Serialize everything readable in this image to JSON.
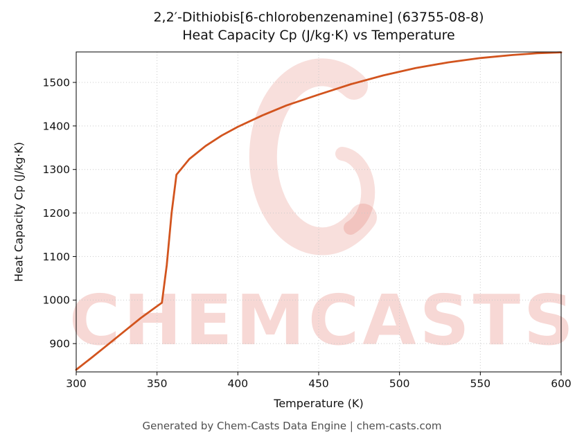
{
  "title_line1": "2,2′-Dithiobis[6-chlorobenzenamine] (63755-08-8)",
  "title_line2": "Heat Capacity Cp (J/kg·K) vs Temperature",
  "footer": "Generated by Chem-Casts Data Engine | chem-casts.com",
  "watermark": {
    "text": "CHEMCASTS",
    "color": "#d53e2e"
  },
  "chart_data": {
    "type": "line",
    "title": "2,2′-Dithiobis[6-chlorobenzenamine] (63755-08-8) Heat Capacity Cp (J/kg·K) vs Temperature",
    "xlabel": "Temperature (K)",
    "ylabel": "Heat Capacity Cp (J/kg·K)",
    "xlim": [
      300,
      600
    ],
    "ylim": [
      835,
      1570
    ],
    "xticks": [
      300,
      350,
      400,
      450,
      500,
      550,
      600
    ],
    "yticks": [
      900,
      1000,
      1100,
      1200,
      1300,
      1400,
      1500
    ],
    "grid": true,
    "grid_style": "dotted",
    "legend": "none",
    "line_color": "#d2541e",
    "series": [
      {
        "name": "Heat Capacity Cp",
        "x": [
          300,
          310,
          320,
          330,
          340,
          350,
          353,
          356,
          359,
          362,
          370,
          380,
          390,
          400,
          415,
          430,
          450,
          470,
          490,
          510,
          530,
          550,
          570,
          585,
          600
        ],
        "y": [
          840,
          869,
          899,
          929,
          959,
          986,
          994,
          1080,
          1200,
          1288,
          1324,
          1354,
          1378,
          1398,
          1424,
          1447,
          1472,
          1496,
          1516,
          1533,
          1546,
          1556,
          1563,
          1567,
          1569
        ]
      }
    ]
  }
}
